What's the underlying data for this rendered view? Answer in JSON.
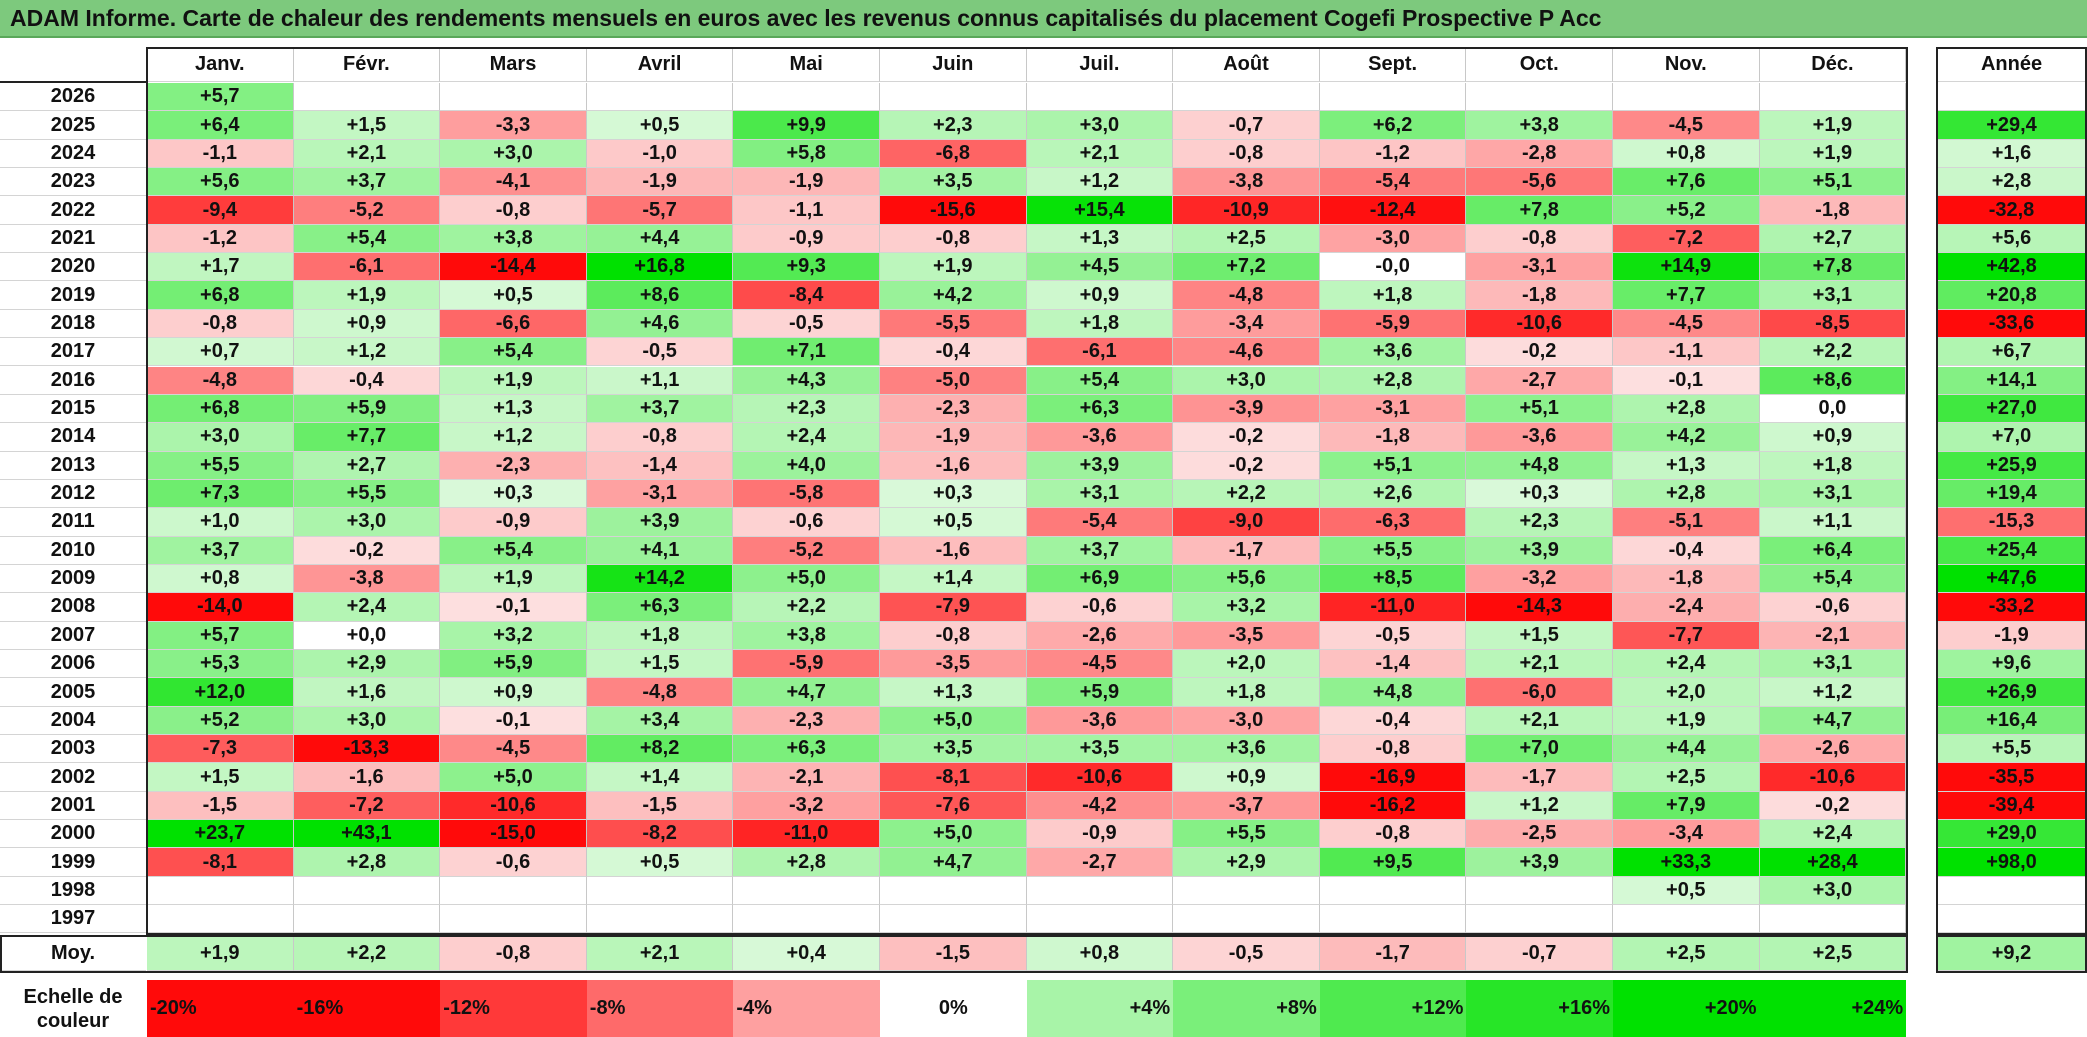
{
  "title": "ADAM Informe. Carte de chaleur des rendements mensuels en euros avec les revenus connus capitalisés du placement Cogefi Prospective P Acc",
  "colors": {
    "header_bar": "#7dc97d",
    "positive_max": "#00e000",
    "negative_max": "#ff0000",
    "neutral": "#ffffff"
  },
  "chart_data": {
    "type": "heatmap",
    "months": [
      "Janv.",
      "Févr.",
      "Mars",
      "Avril",
      "Mai",
      "Juin",
      "Juil.",
      "Août",
      "Sept.",
      "Oct.",
      "Nov.",
      "Déc."
    ],
    "annual_label": "Année",
    "rows": [
      {
        "year": "2026",
        "months": [
          "+5,7",
          "",
          "",
          "",
          "",
          "",
          "",
          "",
          "",
          "",
          "",
          ""
        ],
        "annual": ""
      },
      {
        "year": "2025",
        "months": [
          "+6,4",
          "+1,5",
          "-3,3",
          "+0,5",
          "+9,9",
          "+2,3",
          "+3,0",
          "-0,7",
          "+6,2",
          "+3,8",
          "-4,5",
          "+1,9"
        ],
        "annual": "+29,4"
      },
      {
        "year": "2024",
        "months": [
          "-1,1",
          "+2,1",
          "+3,0",
          "-1,0",
          "+5,8",
          "-6,8",
          "+2,1",
          "-0,8",
          "-1,2",
          "-2,8",
          "+0,8",
          "+1,9"
        ],
        "annual": "+1,6"
      },
      {
        "year": "2023",
        "months": [
          "+5,6",
          "+3,7",
          "-4,1",
          "-1,9",
          "-1,9",
          "+3,5",
          "+1,2",
          "-3,8",
          "-5,4",
          "-5,6",
          "+7,6",
          "+5,1"
        ],
        "annual": "+2,8"
      },
      {
        "year": "2022",
        "months": [
          "-9,4",
          "-5,2",
          "-0,8",
          "-5,7",
          "-1,1",
          "-15,6",
          "+15,4",
          "-10,9",
          "-12,4",
          "+7,8",
          "+5,2",
          "-1,8"
        ],
        "annual": "-32,8"
      },
      {
        "year": "2021",
        "months": [
          "-1,2",
          "+5,4",
          "+3,8",
          "+4,4",
          "-0,9",
          "-0,8",
          "+1,3",
          "+2,5",
          "-3,0",
          "-0,8",
          "-7,2",
          "+2,7"
        ],
        "annual": "+5,6"
      },
      {
        "year": "2020",
        "months": [
          "+1,7",
          "-6,1",
          "-14,4",
          "+16,8",
          "+9,3",
          "+1,9",
          "+4,5",
          "+7,2",
          "-0,0",
          "-3,1",
          "+14,9",
          "+7,8"
        ],
        "annual": "+42,8"
      },
      {
        "year": "2019",
        "months": [
          "+6,8",
          "+1,9",
          "+0,5",
          "+8,6",
          "-8,4",
          "+4,2",
          "+0,9",
          "-4,8",
          "+1,8",
          "-1,8",
          "+7,7",
          "+3,1"
        ],
        "annual": "+20,8"
      },
      {
        "year": "2018",
        "months": [
          "-0,8",
          "+0,9",
          "-6,6",
          "+4,6",
          "-0,5",
          "-5,5",
          "+1,8",
          "-3,4",
          "-5,9",
          "-10,6",
          "-4,5",
          "-8,5"
        ],
        "annual": "-33,6"
      },
      {
        "year": "2017",
        "months": [
          "+0,7",
          "+1,2",
          "+5,4",
          "-0,5",
          "+7,1",
          "-0,4",
          "-6,1",
          "-4,6",
          "+3,6",
          "-0,2",
          "-1,1",
          "+2,2"
        ],
        "annual": "+6,7"
      },
      {
        "year": "2016",
        "months": [
          "-4,8",
          "-0,4",
          "+1,9",
          "+1,1",
          "+4,3",
          "-5,0",
          "+5,4",
          "+3,0",
          "+2,8",
          "-2,7",
          "-0,1",
          "+8,6"
        ],
        "annual": "+14,1"
      },
      {
        "year": "2015",
        "months": [
          "+6,8",
          "+5,9",
          "+1,3",
          "+3,7",
          "+2,3",
          "-2,3",
          "+6,3",
          "-3,9",
          "-3,1",
          "+5,1",
          "+2,8",
          "0,0"
        ],
        "annual": "+27,0"
      },
      {
        "year": "2014",
        "months": [
          "+3,0",
          "+7,7",
          "+1,2",
          "-0,8",
          "+2,4",
          "-1,9",
          "-3,6",
          "-0,2",
          "-1,8",
          "-3,6",
          "+4,2",
          "+0,9"
        ],
        "annual": "+7,0"
      },
      {
        "year": "2013",
        "months": [
          "+5,5",
          "+2,7",
          "-2,3",
          "-1,4",
          "+4,0",
          "-1,6",
          "+3,9",
          "-0,2",
          "+5,1",
          "+4,8",
          "+1,3",
          "+1,8"
        ],
        "annual": "+25,9"
      },
      {
        "year": "2012",
        "months": [
          "+7,3",
          "+5,5",
          "+0,3",
          "-3,1",
          "-5,8",
          "+0,3",
          "+3,1",
          "+2,2",
          "+2,6",
          "+0,3",
          "+2,8",
          "+3,1"
        ],
        "annual": "+19,4"
      },
      {
        "year": "2011",
        "months": [
          "+1,0",
          "+3,0",
          "-0,9",
          "+3,9",
          "-0,6",
          "+0,5",
          "-5,4",
          "-9,0",
          "-6,3",
          "+2,3",
          "-5,1",
          "+1,1"
        ],
        "annual": "-15,3"
      },
      {
        "year": "2010",
        "months": [
          "+3,7",
          "-0,2",
          "+5,4",
          "+4,1",
          "-5,2",
          "-1,6",
          "+3,7",
          "-1,7",
          "+5,5",
          "+3,9",
          "-0,4",
          "+6,4"
        ],
        "annual": "+25,4"
      },
      {
        "year": "2009",
        "months": [
          "+0,8",
          "-3,8",
          "+1,9",
          "+14,2",
          "+5,0",
          "+1,4",
          "+6,9",
          "+5,6",
          "+8,5",
          "-3,2",
          "-1,8",
          "+5,4"
        ],
        "annual": "+47,6"
      },
      {
        "year": "2008",
        "months": [
          "-14,0",
          "+2,4",
          "-0,1",
          "+6,3",
          "+2,2",
          "-7,9",
          "-0,6",
          "+3,2",
          "-11,0",
          "-14,3",
          "-2,4",
          "-0,6"
        ],
        "annual": "-33,2"
      },
      {
        "year": "2007",
        "months": [
          "+5,7",
          "+0,0",
          "+3,2",
          "+1,8",
          "+3,8",
          "-0,8",
          "-2,6",
          "-3,5",
          "-0,5",
          "+1,5",
          "-7,7",
          "-2,1"
        ],
        "annual": "-1,9"
      },
      {
        "year": "2006",
        "months": [
          "+5,3",
          "+2,9",
          "+5,9",
          "+1,5",
          "-5,9",
          "-3,5",
          "-4,5",
          "+2,0",
          "-1,4",
          "+2,1",
          "+2,4",
          "+3,1"
        ],
        "annual": "+9,6"
      },
      {
        "year": "2005",
        "months": [
          "+12,0",
          "+1,6",
          "+0,9",
          "-4,8",
          "+4,7",
          "+1,3",
          "+5,9",
          "+1,8",
          "+4,8",
          "-6,0",
          "+2,0",
          "+1,2"
        ],
        "annual": "+26,9"
      },
      {
        "year": "2004",
        "months": [
          "+5,2",
          "+3,0",
          "-0,1",
          "+3,4",
          "-2,3",
          "+5,0",
          "-3,6",
          "-3,0",
          "-0,4",
          "+2,1",
          "+1,9",
          "+4,7"
        ],
        "annual": "+16,4"
      },
      {
        "year": "2003",
        "months": [
          "-7,3",
          "-13,3",
          "-4,5",
          "+8,2",
          "+6,3",
          "+3,5",
          "+3,5",
          "+3,6",
          "-0,8",
          "+7,0",
          "+4,4",
          "-2,6"
        ],
        "annual": "+5,5"
      },
      {
        "year": "2002",
        "months": [
          "+1,5",
          "-1,6",
          "+5,0",
          "+1,4",
          "-2,1",
          "-8,1",
          "-10,6",
          "+0,9",
          "-16,9",
          "-1,7",
          "+2,5",
          "-10,6"
        ],
        "annual": "-35,5"
      },
      {
        "year": "2001",
        "months": [
          "-1,5",
          "-7,2",
          "-10,6",
          "-1,5",
          "-3,2",
          "-7,6",
          "-4,2",
          "-3,7",
          "-16,2",
          "+1,2",
          "+7,9",
          "-0,2"
        ],
        "annual": "-39,4"
      },
      {
        "year": "2000",
        "months": [
          "+23,7",
          "+43,1",
          "-15,0",
          "-8,2",
          "-11,0",
          "+5,0",
          "-0,9",
          "+5,5",
          "-0,8",
          "-2,5",
          "-3,4",
          "+2,4"
        ],
        "annual": "+29,0"
      },
      {
        "year": "1999",
        "months": [
          "-8,1",
          "+2,8",
          "-0,6",
          "+0,5",
          "+2,8",
          "+4,7",
          "-2,7",
          "+2,9",
          "+9,5",
          "+3,9",
          "+33,3",
          "+28,4"
        ],
        "annual": "+98,0"
      },
      {
        "year": "1998",
        "months": [
          "",
          "",
          "",
          "",
          "",
          "",
          "",
          "",
          "",
          "",
          "+0,5",
          "+3,0"
        ],
        "annual": ""
      },
      {
        "year": "1997",
        "months": [
          "",
          "",
          "",
          "",
          "",
          "",
          "",
          "",
          "",
          "",
          "",
          ""
        ],
        "annual": ""
      }
    ],
    "average": {
      "label": "Moy.",
      "months": [
        "+1,9",
        "+2,2",
        "-0,8",
        "+2,1",
        "+0,4",
        "-1,5",
        "+0,8",
        "-0,5",
        "-1,7",
        "-0,7",
        "+2,5",
        "+2,5"
      ],
      "annual": "+9,2"
    },
    "scale": {
      "label_line1": "Echelle de",
      "label_line2": "couleur",
      "steps": [
        "-20%",
        "-16%",
        "-12%",
        "-8%",
        "-4%",
        "0%",
        "+4%",
        "+8%",
        "+12%",
        "+16%",
        "+20%",
        "+24%"
      ]
    }
  }
}
